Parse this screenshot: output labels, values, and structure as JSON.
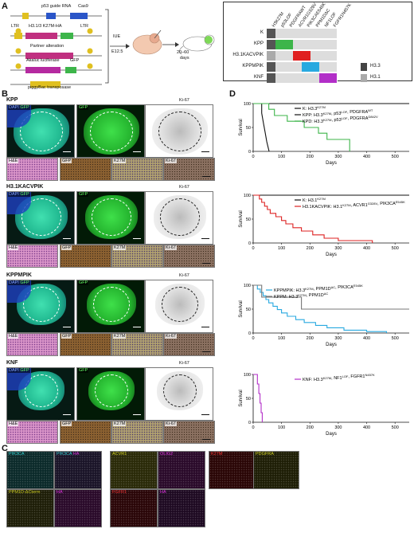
{
  "panel_labels": {
    "a": "A",
    "b": "B",
    "c": "C",
    "d": "D"
  },
  "panel_a": {
    "construct1": {
      "gene1": "p53 guide RNA",
      "gene2": "Cas9"
    },
    "construct2": {
      "ltr_left": "LTR",
      "insert": "H3.1/3 K27M-HA",
      "gfp": "GFP",
      "ltr_right": "LTR"
    },
    "construct3": {
      "insert": "Partner alteration"
    },
    "construct4": {
      "insert": "Akaluc luciferase",
      "gfp": "GFP"
    },
    "construct5": {
      "insert": "piggyBac transposase"
    },
    "step1": "IUE",
    "step1_time": "E12.5",
    "step2_time": "20–60",
    "step2_unit": "days",
    "matrix": {
      "columns": [
        "H3K27M",
        "p53LOF",
        "PDGFRAWT",
        "ACVR1G328V",
        "PIK3CAE545K",
        "PPM1DΔC",
        "NF1LOF",
        "FGFR1N457K"
      ],
      "rows": [
        "K",
        "KPP",
        "H3.1KACVPIK",
        "KPPMPIK",
        "KNF"
      ],
      "row_h3_colors": [
        "#555555",
        "#555555",
        "#aaaaaa",
        "#555555",
        "#555555"
      ],
      "legend": [
        {
          "label": "H3.3",
          "color": "#444444"
        },
        {
          "label": "H3.1",
          "color": "#aaaaaa"
        }
      ],
      "colors": {
        "p53": "#3db54a",
        "acvr1": "#e02020",
        "pik3ca": "#28a9e0",
        "fgfr": "#b22ec8"
      }
    }
  },
  "panel_b": {
    "rows": [
      {
        "name": "KPP",
        "top": [
          "DAPI GFP",
          "GFP",
          "Ki-67"
        ],
        "bottom": [
          "H&E",
          "GFP",
          "K27M",
          "Ki-67"
        ]
      },
      {
        "name": "H3.1KACVPIK",
        "top": [
          "DAPI GFP",
          "GFP",
          "Ki-67"
        ],
        "bottom": [
          "H&E",
          "GFP",
          "K27M",
          "Ki-67"
        ]
      },
      {
        "name": "KPPMPIK",
        "top": [
          "DAPI GFP",
          "GFP",
          "Ki-67"
        ],
        "bottom": [
          "H&E",
          "GFP",
          "K27M",
          "Ki-67"
        ]
      },
      {
        "name": "KNF",
        "top": [
          "DAPI GFP",
          "GFP",
          "Ki-67"
        ],
        "bottom": [
          "H&E",
          "GFP",
          "K27M",
          "Ki-67"
        ]
      }
    ]
  },
  "panel_c": {
    "tiles": [
      {
        "name": "pik3ca",
        "parts": [
          {
            "t": "PIK3CA",
            "c": "#33cccc"
          }
        ]
      },
      {
        "name": "pik3ca-ha",
        "parts": [
          {
            "t": "PIK3CA",
            "c": "#33cccc"
          },
          {
            "t": " HA",
            "c": "#dd33dd"
          }
        ]
      },
      {
        "name": "acvr1",
        "parts": [
          {
            "t": "ACVR1",
            "c": "#cccc22"
          }
        ]
      },
      {
        "name": "olig2",
        "parts": [
          {
            "t": "OLIG2",
            "c": "#dd33dd"
          }
        ]
      },
      {
        "name": "k27m",
        "parts": [
          {
            "t": "K27M",
            "c": "#ee3333"
          }
        ]
      },
      {
        "name": "pdgfra",
        "parts": [
          {
            "t": "PDGFRA",
            "c": "#cccc22"
          }
        ]
      },
      {
        "name": "ppm1d",
        "parts": [
          {
            "t": "PPM1D-ΔCterm",
            "c": "#cccc22"
          }
        ]
      },
      {
        "name": "ha",
        "parts": [
          {
            "t": "HA",
            "c": "#dd33dd"
          }
        ]
      },
      {
        "name": "fgfr1",
        "parts": [
          {
            "t": "FGFR1",
            "c": "#ee3333"
          }
        ]
      },
      {
        "name": "ha2",
        "parts": [
          {
            "t": "HA",
            "c": "#dd33dd"
          }
        ]
      }
    ]
  },
  "chart_data": [
    {
      "type": "line",
      "ylabel": "Survival",
      "xlabel": "Days",
      "ylim": [
        0,
        100
      ],
      "xlim": [
        0,
        550
      ],
      "yticks": [
        0,
        50,
        100
      ],
      "xticks": [
        0,
        100,
        200,
        300,
        400,
        500
      ],
      "series": [
        {
          "name": "K: H3.3K27M",
          "color": "#111111",
          "points": [
            [
              0,
              100
            ],
            [
              550,
              100
            ]
          ]
        },
        {
          "name": "KPP: H3.3K27M, p53LOF, PDGFRAWT",
          "color": "#111111",
          "points": [
            [
              0,
              100
            ],
            [
              30,
              100
            ],
            [
              30,
              80
            ],
            [
              36,
              60
            ],
            [
              42,
              40
            ],
            [
              48,
              20
            ],
            [
              56,
              0
            ]
          ]
        },
        {
          "name": "KPD: H3.3K27M, p53LOF, PDGFRAD842V",
          "color": "#3db54a",
          "points": [
            [
              0,
              100
            ],
            [
              55,
              100
            ],
            [
              55,
              88
            ],
            [
              75,
              88
            ],
            [
              75,
              75
            ],
            [
              120,
              75
            ],
            [
              120,
              63
            ],
            [
              180,
              63
            ],
            [
              180,
              50
            ],
            [
              230,
              50
            ],
            [
              230,
              38
            ],
            [
              260,
              38
            ],
            [
              260,
              25
            ],
            [
              340,
              25
            ],
            [
              340,
              0
            ]
          ]
        }
      ],
      "legend": [
        {
          "label": "K: H3.3",
          "sup": "K27M",
          "color": "#111111"
        },
        {
          "label": "KPP: H3.3",
          "sup": "K27M",
          "rest": ", p53",
          "sup2": "LOF",
          "rest2": ", PDGFRA",
          "sup3": "WT",
          "color": "#111111"
        },
        {
          "label": "KPD: H3.3",
          "sup": "K27M",
          "rest": ", p53",
          "sup2": "LOF",
          "rest2": ", PDGFRA",
          "sup3": "D842V",
          "color": "#3db54a"
        }
      ]
    },
    {
      "type": "line",
      "ylabel": "Survival",
      "xlabel": "Days",
      "ylim": [
        0,
        100
      ],
      "xlim": [
        0,
        550
      ],
      "yticks": [
        0,
        50,
        100
      ],
      "xticks": [
        0,
        100,
        200,
        300,
        400,
        500
      ],
      "series": [
        {
          "name": "K: H3.1K27M",
          "color": "#111111",
          "points": [
            [
              0,
              100
            ],
            [
              550,
              100
            ]
          ]
        },
        {
          "name": "H3.1KACVPIK",
          "color": "#dd2222",
          "points": [
            [
              0,
              100
            ],
            [
              22,
              100
            ],
            [
              22,
              92
            ],
            [
              30,
              92
            ],
            [
              30,
              85
            ],
            [
              40,
              85
            ],
            [
              40,
              77
            ],
            [
              50,
              77
            ],
            [
              50,
              70
            ],
            [
              60,
              70
            ],
            [
              60,
              62
            ],
            [
              80,
              62
            ],
            [
              80,
              55
            ],
            [
              100,
              55
            ],
            [
              100,
              47
            ],
            [
              115,
              47
            ],
            [
              115,
              40
            ],
            [
              140,
              40
            ],
            [
              140,
              32
            ],
            [
              170,
              32
            ],
            [
              170,
              25
            ],
            [
              210,
              25
            ],
            [
              210,
              17
            ],
            [
              250,
              17
            ],
            [
              250,
              10
            ],
            [
              300,
              10
            ],
            [
              300,
              5
            ],
            [
              420,
              5
            ],
            [
              420,
              0
            ]
          ]
        }
      ],
      "legend": [
        {
          "label": "K: H3.1",
          "sup": "K27M",
          "color": "#111111"
        },
        {
          "label": "H3.1KACVPIK: H3.1",
          "sup": "K27M",
          "rest": ", ACVR1",
          "sup2": "G328V",
          "rest2": ", PIK3CA",
          "sup3": "E545K",
          "color": "#dd2222"
        }
      ]
    },
    {
      "type": "line",
      "ylabel": "Survival",
      "xlabel": "Days",
      "ylim": [
        0,
        100
      ],
      "xlim": [
        0,
        550
      ],
      "yticks": [
        0,
        50,
        100
      ],
      "xticks": [
        0,
        100,
        200,
        300,
        400,
        500
      ],
      "series": [
        {
          "name": "KPPMPIK",
          "color": "#28a9e0",
          "points": [
            [
              0,
              100
            ],
            [
              15,
              100
            ],
            [
              15,
              92
            ],
            [
              25,
              92
            ],
            [
              25,
              85
            ],
            [
              35,
              85
            ],
            [
              35,
              78
            ],
            [
              45,
              78
            ],
            [
              45,
              70
            ],
            [
              55,
              70
            ],
            [
              55,
              63
            ],
            [
              70,
              63
            ],
            [
              70,
              56
            ],
            [
              85,
              56
            ],
            [
              85,
              49
            ],
            [
              100,
              49
            ],
            [
              100,
              42
            ],
            [
              120,
              42
            ],
            [
              120,
              35
            ],
            [
              150,
              35
            ],
            [
              150,
              28
            ],
            [
              180,
              28
            ],
            [
              180,
              22
            ],
            [
              220,
              22
            ],
            [
              220,
              16
            ],
            [
              260,
              16
            ],
            [
              260,
              11
            ],
            [
              320,
              11
            ],
            [
              320,
              6
            ],
            [
              400,
              6
            ],
            [
              400,
              3
            ],
            [
              470,
              3
            ],
            [
              470,
              0
            ]
          ]
        },
        {
          "name": "KPPM",
          "color": "#777777",
          "points": [
            [
              0,
              100
            ],
            [
              30,
              100
            ],
            [
              30,
              75
            ],
            [
              170,
              75
            ],
            [
              170,
              50
            ],
            [
              550,
              50
            ]
          ]
        }
      ],
      "legend": [
        {
          "label": "KPPMPIK: H3.3",
          "sup": "K27M",
          "rest": ", PPM1D",
          "sup2": "ΔC",
          "rest2": ", PIK3CA",
          "sup3": "E545K",
          "color": "#28a9e0"
        },
        {
          "label": "KPPM: H3.3",
          "sup": "K27M",
          "rest": ", PPM1D",
          "sup2": "ΔC",
          "color": "#777777"
        }
      ]
    },
    {
      "type": "line",
      "ylabel": "Survival",
      "xlabel": "Days",
      "ylim": [
        0,
        100
      ],
      "xlim": [
        0,
        550
      ],
      "yticks": [
        0,
        50,
        100
      ],
      "xticks": [
        0,
        100,
        200,
        300,
        400,
        500
      ],
      "series": [
        {
          "name": "KNF",
          "color": "#b22ec8",
          "points": [
            [
              0,
              100
            ],
            [
              15,
              100
            ],
            [
              15,
              80
            ],
            [
              20,
              80
            ],
            [
              20,
              60
            ],
            [
              24,
              60
            ],
            [
              24,
              40
            ],
            [
              28,
              40
            ],
            [
              28,
              20
            ],
            [
              32,
              20
            ],
            [
              32,
              0
            ]
          ]
        }
      ],
      "legend": [
        {
          "label": "KNF: H3.3",
          "sup": "K27M",
          "rest": ", NF1",
          "sup2": "LOF",
          "rest2": ", FGFR1",
          "sup3": "N457K",
          "color": "#b22ec8"
        }
      ]
    }
  ]
}
